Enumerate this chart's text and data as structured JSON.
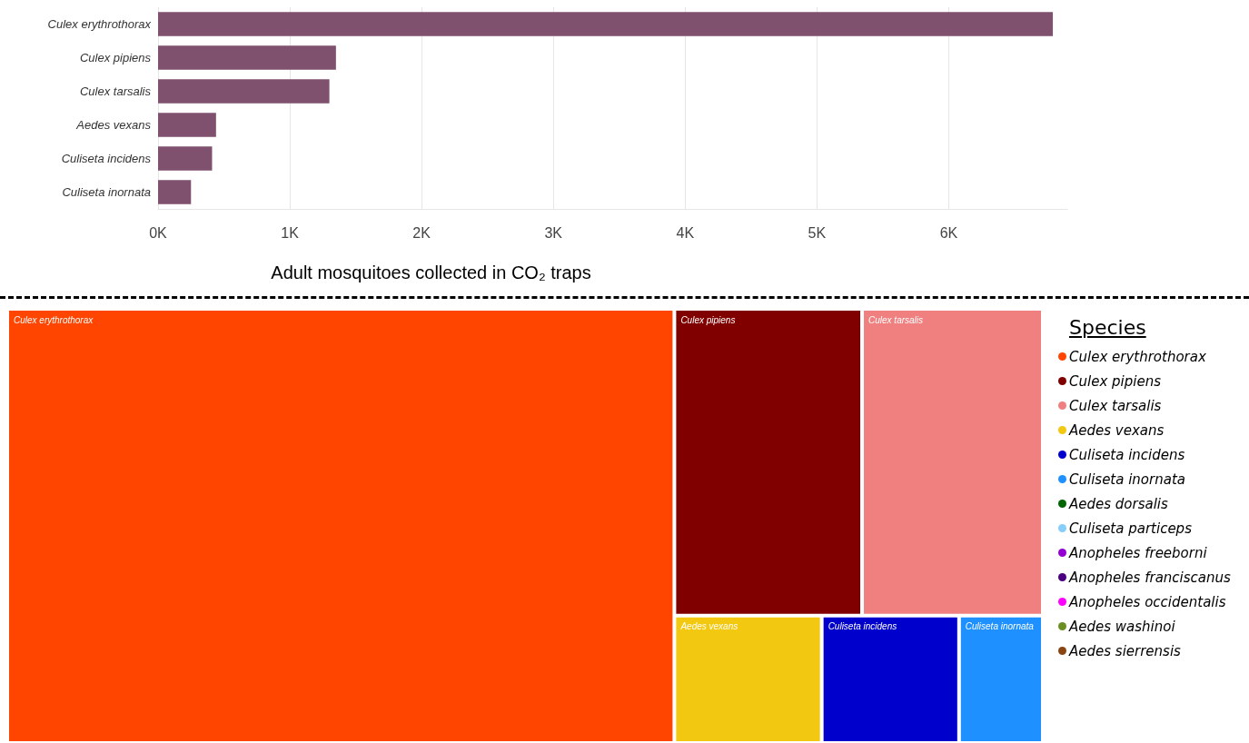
{
  "chart_data": [
    {
      "type": "bar",
      "orientation": "horizontal",
      "xlabel": "Adult mosquitoes collected in CO₂ traps",
      "categories": [
        "Culex erythrothorax",
        "Culex pipiens",
        "Culex tarsalis",
        "Aedes vexans",
        "Culiseta incidens",
        "Culiseta inornata"
      ],
      "values": [
        6790,
        1350,
        1300,
        440,
        410,
        250
      ],
      "color": "#80506f",
      "xlim": [
        0,
        6900
      ],
      "xticks": [
        {
          "value": 0,
          "label": "0K"
        },
        {
          "value": 1000,
          "label": "1K"
        },
        {
          "value": 2000,
          "label": "2K"
        },
        {
          "value": 3000,
          "label": "3K"
        },
        {
          "value": 4000,
          "label": "4K"
        },
        {
          "value": 5000,
          "label": "5K"
        },
        {
          "value": 6000,
          "label": "6K"
        }
      ],
      "grid": "x"
    },
    {
      "type": "other",
      "legend_title": "Species",
      "categories": [
        "Culex erythrothorax",
        "Culex pipiens",
        "Culex tarsalis",
        "Aedes vexans",
        "Culiseta incidens",
        "Culiseta inornata",
        "Aedes dorsalis",
        "Culiseta particeps",
        "Anopheles freeborni",
        "Anopheles franciscanus",
        "Anopheles occidentalis",
        "Aedes washinoi",
        "Aedes sierrensis"
      ],
      "colors": [
        "#ff4500",
        "#800000",
        "#f08080",
        "#f2c811",
        "#0000cd",
        "#1e90ff",
        "#006400",
        "#87cefa",
        "#9400d3",
        "#4b0082",
        "#ff00ff",
        "#6b8e23",
        "#8b4513"
      ]
    }
  ]
}
